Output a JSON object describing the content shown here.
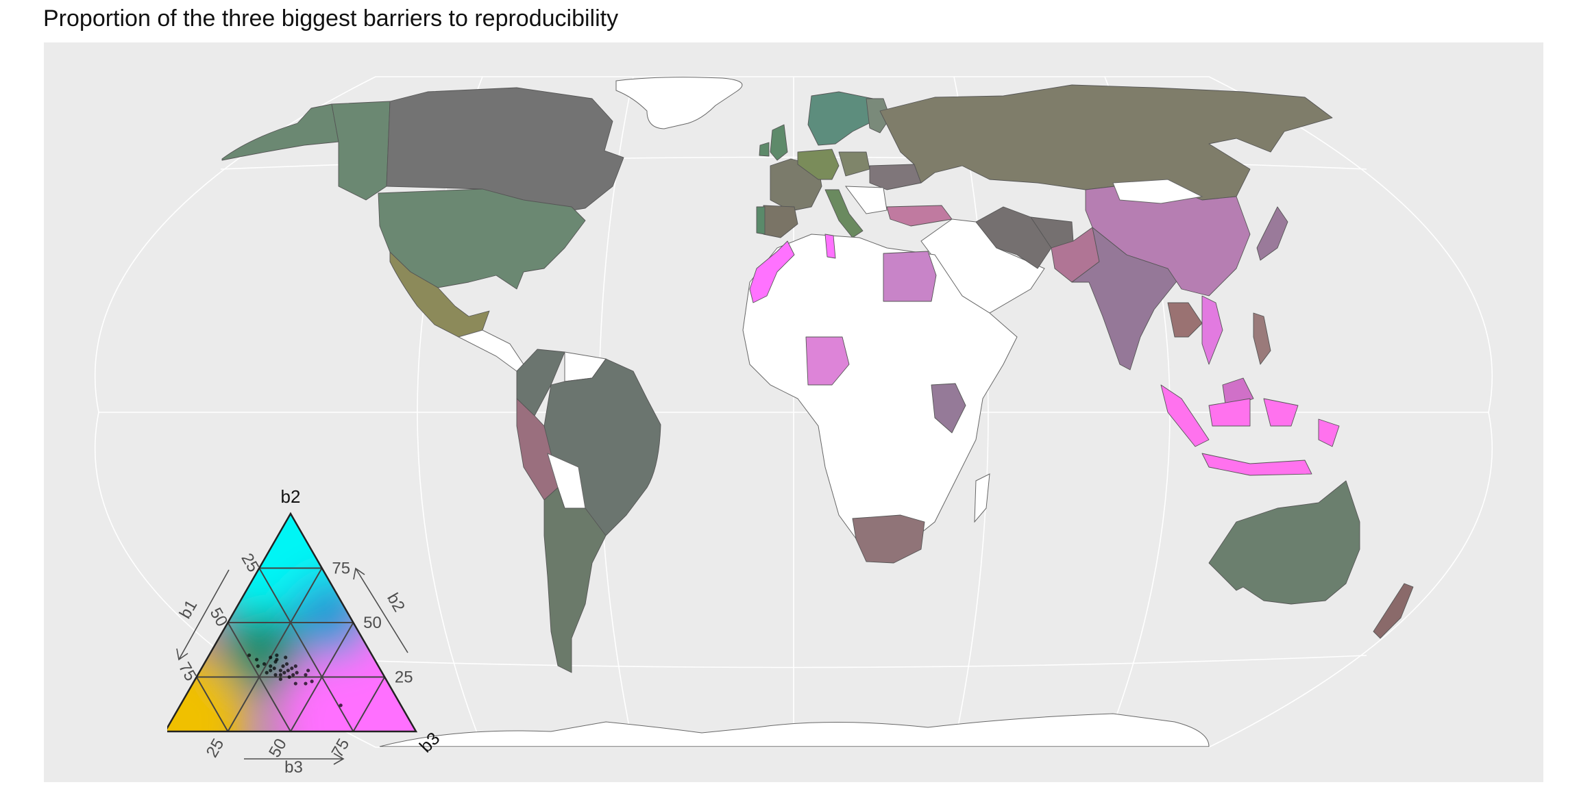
{
  "title": "Proportion of the three biggest barriers to reproducibility",
  "palette": {
    "b1": "#f0c000",
    "b2": "#00f5f5",
    "b3": "#ff70ff",
    "panel_background": "#ebebeb",
    "no_data": "#ffffff"
  },
  "legend": {
    "type": "ternary",
    "vertices": {
      "b1": "b1",
      "b2": "b2",
      "b3": "b3"
    },
    "axis_titles": {
      "b1": "b1",
      "b2": "b2",
      "b3": "b3"
    },
    "ticks": [
      "25",
      "50",
      "75"
    ],
    "points": [
      [
        0.4,
        0.28,
        0.32
      ],
      [
        0.38,
        0.3,
        0.32
      ],
      [
        0.42,
        0.29,
        0.29
      ],
      [
        0.36,
        0.31,
        0.33
      ],
      [
        0.39,
        0.27,
        0.34
      ],
      [
        0.41,
        0.26,
        0.33
      ],
      [
        0.37,
        0.28,
        0.35
      ],
      [
        0.43,
        0.3,
        0.27
      ],
      [
        0.35,
        0.29,
        0.36
      ],
      [
        0.4,
        0.32,
        0.28
      ],
      [
        0.38,
        0.25,
        0.37
      ],
      [
        0.44,
        0.28,
        0.28
      ],
      [
        0.34,
        0.27,
        0.39
      ],
      [
        0.39,
        0.33,
        0.28
      ],
      [
        0.42,
        0.24,
        0.34
      ],
      [
        0.36,
        0.26,
        0.38
      ],
      [
        0.33,
        0.3,
        0.37
      ],
      [
        0.45,
        0.31,
        0.24
      ],
      [
        0.47,
        0.33,
        0.2
      ],
      [
        0.49,
        0.35,
        0.16
      ],
      [
        0.48,
        0.3,
        0.22
      ],
      [
        0.46,
        0.27,
        0.27
      ],
      [
        0.31,
        0.26,
        0.43
      ],
      [
        0.3,
        0.23,
        0.47
      ],
      [
        0.33,
        0.22,
        0.45
      ],
      [
        0.29,
        0.28,
        0.43
      ],
      [
        0.37,
        0.22,
        0.41
      ],
      [
        0.35,
        0.34,
        0.31
      ],
      [
        0.41,
        0.34,
        0.25
      ],
      [
        0.24,
        0.12,
        0.64
      ],
      [
        0.43,
        0.26,
        0.31
      ],
      [
        0.38,
        0.35,
        0.27
      ]
    ]
  },
  "countries": {
    "usa": "#6b8872",
    "canada_west": "#6b8872",
    "canada": "#737373",
    "alaska": "#6b8872",
    "mexico": "#8c8a5a",
    "colombia": "#6b756f",
    "peru": "#9a6f7e",
    "brazil": "#6b756f",
    "argentina": "#6b7a6a",
    "uk": "#5e8a6a",
    "ireland": "#5e8a6a",
    "iberia": "#7a7466",
    "portugal": "#5a8a6a",
    "france": "#7b7b6b",
    "germany": "#7a8c5a",
    "scandinavia": "#5d8d7d",
    "finland": "#7a8a7a",
    "poland": "#7f856a",
    "italy": "#6a8a5f",
    "ukraine": "#7f767a",
    "russia": "#7f7d6a",
    "turkey": "#c07aa0",
    "iran": "#757070",
    "afghanistan": "#757070",
    "pakistan": "#b07595",
    "india": "#957898",
    "china": "#b67eb2",
    "japan": "#9a7a9a",
    "thailand": "#9a7272",
    "vietnam": "#e27ae0",
    "malaysia": "#d070c8",
    "indonesia": "#ff72ee",
    "philippines": "#9a7a7a",
    "morocco": "#ff72ff",
    "tunisia": "#ff72ff",
    "egypt": "#c884c8",
    "nigeria": "#dd84d8",
    "kenya": "#957a98",
    "south_africa": "#907478",
    "australia": "#6b7f6e",
    "new_zealand": "#8a6a6a"
  }
}
